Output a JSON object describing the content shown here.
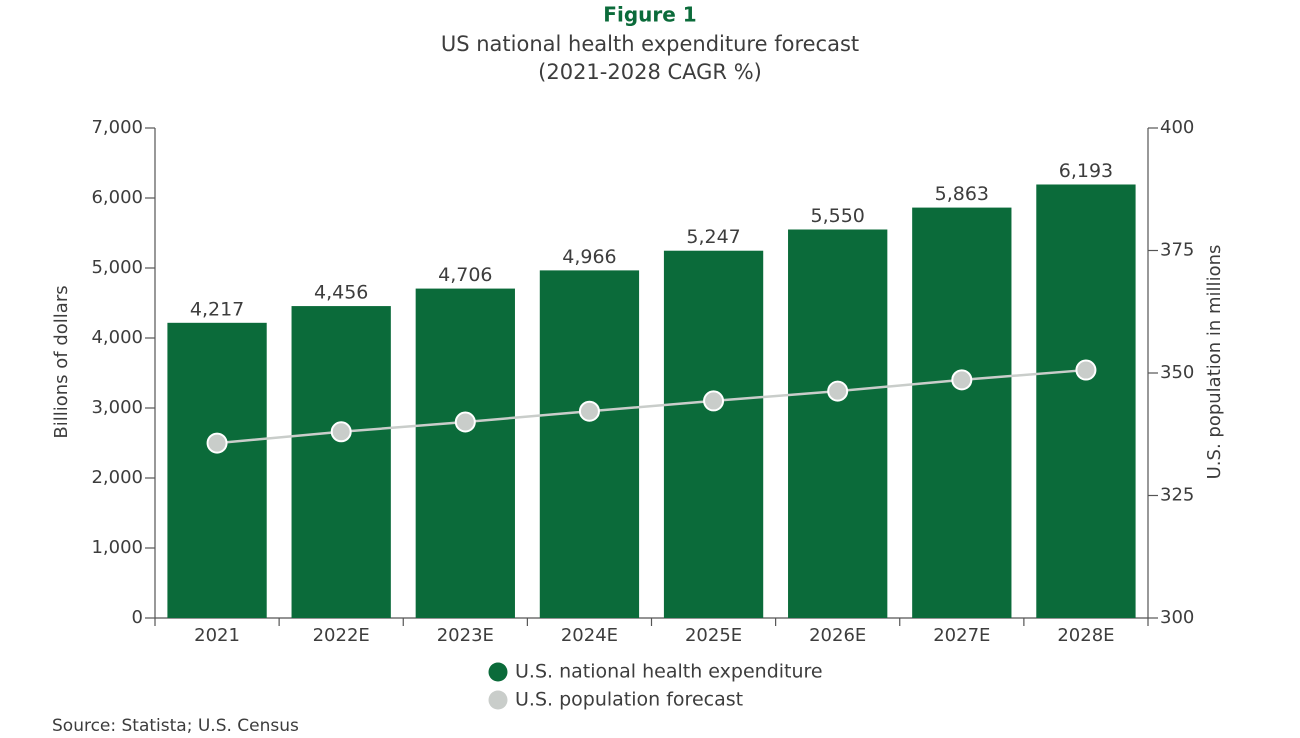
{
  "chart_data": {
    "type": "bar",
    "title": "Figure 1",
    "subtitle_lines": [
      "US national health expenditure forecast",
      "(2021-2028 CAGR %)"
    ],
    "categories": [
      "2021",
      "2022E",
      "2023E",
      "2024E",
      "2025E",
      "2026E",
      "2027E",
      "2028E"
    ],
    "series": [
      {
        "name": "U.S. national health expenditure",
        "type": "bar",
        "color": "#0b6b3a",
        "values": [
          4217,
          4456,
          4706,
          4966,
          5247,
          5550,
          5863,
          6193
        ],
        "value_labels": [
          "4,217",
          "4,456",
          "4,706",
          "4,966",
          "5,247",
          "5,550",
          "5,863",
          "6,193"
        ]
      },
      {
        "name": "U.S. population forecast",
        "type": "line",
        "axis": "y2",
        "color": "#c9cdca",
        "values": [
          335.7,
          338.0,
          340.0,
          342.2,
          344.3,
          346.3,
          348.6,
          350.6
        ]
      }
    ],
    "ylabel": "Billions of dollars",
    "y2label": "U.S. population in millions",
    "ylim": [
      0,
      7000
    ],
    "yticks": [
      0,
      {
        "value": 1000,
        "label": "1,000"
      },
      {
        "value": 2000,
        "label": "2,000"
      },
      {
        "value": 3000,
        "label": "3,000"
      },
      {
        "value": 4000,
        "label": "4,000"
      },
      {
        "value": 5000,
        "label": "5,000"
      },
      {
        "value": 6000,
        "label": "6,000"
      },
      {
        "value": 7000,
        "label": "7,000"
      }
    ],
    "y2lim": [
      300,
      400
    ],
    "y2ticks": [
      300,
      325,
      350,
      375,
      400
    ],
    "grid": false,
    "legend": "bottom",
    "source": "Source: Statista; U.S. Census"
  }
}
